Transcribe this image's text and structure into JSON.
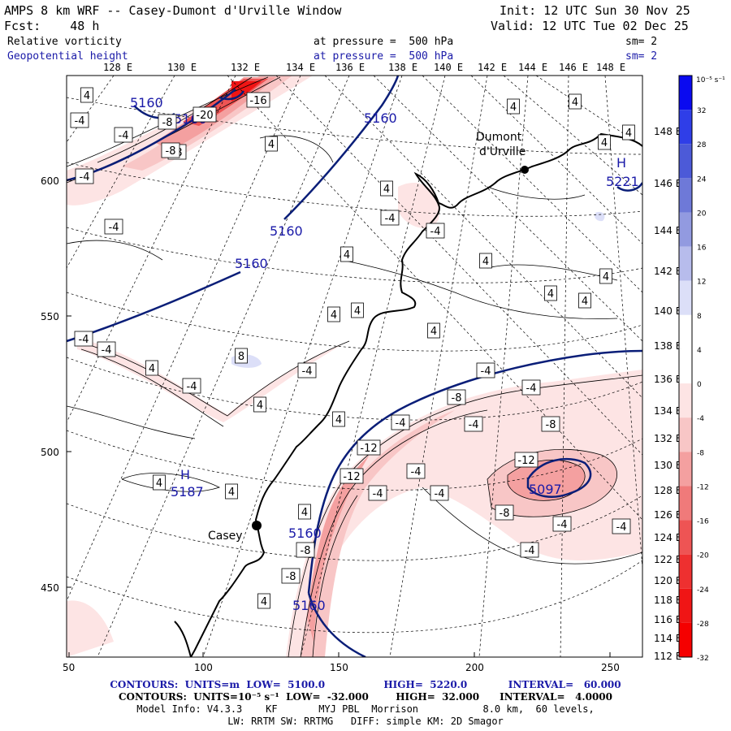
{
  "header": {
    "title": "AMPS 8 km WRF -- Casey-Dumont d'Urville Window",
    "init": "Init: 12 UTC Sun 30 Nov 25",
    "fcst": "Fcst:    48 h",
    "valid": "Valid: 12 UTC Tue 02 Dec 25",
    "field1_name": "Relative vorticity",
    "field1_level": "at pressure =  500 hPa",
    "field1_sm": "sm= 2",
    "field2_name": "Geopotential height",
    "field2_level": "at pressure =  500 hPa",
    "field2_sm": "sm= 2"
  },
  "top_lon_labels": [
    "128 E",
    "130 E",
    "132 E",
    "134 E",
    "136 E",
    "138 E",
    "140 E",
    "142 E",
    "144 E",
    "146 E",
    "148 E"
  ],
  "right_lon_labels": [
    "148 E",
    "146 E",
    "144 E",
    "142 E",
    "140 E",
    "138 E",
    "136 E",
    "134 E",
    "132 E",
    "130 E",
    "128 E",
    "126 E",
    "124 E",
    "122 E",
    "120 E",
    "118 E",
    "116 E",
    "114 E",
    "112 E"
  ],
  "left_grid_labels": [
    "600",
    "550",
    "500",
    "450"
  ],
  "bottom_grid_labels": [
    "50",
    "100",
    "150",
    "200",
    "250"
  ],
  "places": {
    "dumont": [
      "Dumont",
      "d'Urville"
    ],
    "casey": "Casey"
  },
  "colorbar": {
    "unit": "10⁻⁵ s⁻¹",
    "labels": [
      "32",
      "28",
      "24",
      "20",
      "16",
      "12",
      "8",
      "4",
      "0",
      "-4",
      "-8",
      "-12",
      "-16",
      "-20",
      "-24",
      "-28",
      "-32"
    ],
    "colors": [
      "#0a0af0",
      "#2f3ee8",
      "#4c5ad8",
      "#6e79d8",
      "#929ae0",
      "#b7bcec",
      "#dcdff8",
      "#ffffff",
      "#ffffff",
      "#fde4e4",
      "#f8c6c6",
      "#f4a0a0",
      "#f07a7a",
      "#ee5454",
      "#ee3030",
      "#f01515",
      "#f50000"
    ]
  },
  "height_labels": [
    {
      "t": "5160"
    },
    {
      "t": "5160"
    },
    {
      "t": "5160"
    },
    {
      "t": "5160"
    },
    {
      "t": "5160"
    },
    {
      "t": "H"
    },
    {
      "t": "5187"
    },
    {
      "t": "H"
    },
    {
      "t": "5221"
    },
    {
      "t": "5097"
    },
    {
      "t": "5160"
    },
    {
      "t": "5160"
    }
  ],
  "vort_labels": [
    "4",
    "-4",
    "-4",
    "-8",
    "-8",
    "-20",
    "-16",
    "-8",
    "-4",
    "-4",
    "-4",
    "4",
    "4",
    "4",
    "-4",
    "-4",
    "4",
    "4",
    "4",
    "4",
    "4",
    "4",
    "4",
    "4",
    "4",
    "4",
    "4",
    "-4",
    "-4",
    "8",
    "4",
    "-4",
    "4",
    "-4",
    "4",
    "-8",
    "-4",
    "-4",
    "-4",
    "-8",
    "-12",
    "-12",
    "-4",
    "-4",
    "-12",
    "-8",
    "-4",
    "-4",
    "4",
    "4",
    "-8",
    "-8",
    "-4",
    "-4",
    "4",
    "4"
  ],
  "footer": {
    "line1_prefix": "CONTOURS:  UNITS=m  LOW=  5100.0",
    "line1_high": "HIGH=  5220.0",
    "line1_int": "INTERVAL=   60.000",
    "line2": "CONTOURS:  UNITS=10⁻⁵ s⁻¹  LOW=  -32.000        HIGH=  32.000      INTERVAL=   4.0000",
    "line3": "Model Info: V4.3.3    KF       MYJ PBL  Morrison           8.0 km,  60 levels,",
    "line4": "LW: RRTM SW: RRTMG   DIFF: simple KM: 2D Smagor"
  }
}
